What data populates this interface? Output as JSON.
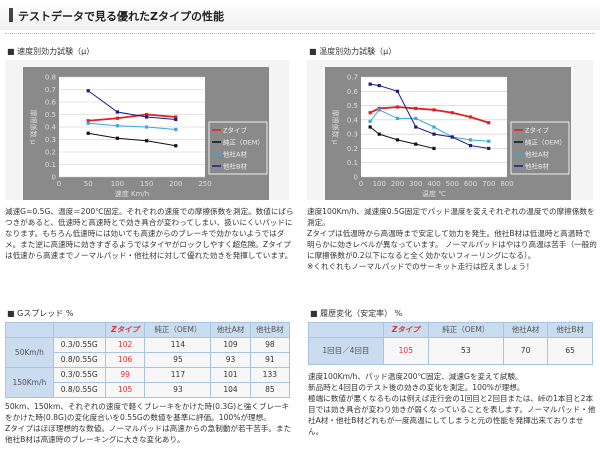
{
  "page_title": "テストデータで見る優れたZタイプの性能",
  "speed_section": {
    "title": "■ 速度別効力試験（μ）",
    "text": "減速G=0.5G、温度＝200℃固定。それぞれの速度での摩擦係数を測定。数値にばらつきがあると、低速時と高速時とで効き具合が変わってしまい、扱いにくいパッドになります。もちろん低速時には効いても高速からのブレーキで効かないようではダメ。また逆に高速時に効きすぎるようではタイヤがロックしやすく超危険。Zタイプは低速から高速までノーマルパッド・他社材に対して優れた効きを発揮しています。"
  },
  "temp_section": {
    "title": "■ 温度別効力試験（μ）",
    "text": [
      "速度100Km/h、減速度0.5G固定でパッド温度を変えそれぞれの温度での摩擦係数を測定。",
      "Zタイプは低温時から高温時まで安定して効力を発生。他社B材は低温時と高温時で明らかに効きレベルが異なっています。 ノーマルパッドはやはり高温は苦手（一般的に摩擦係数が0.2以下になると全く効かないフィーリングになる）。",
      "※くれぐれもノーマルパッドでのサーキット走行は控えましょう！"
    ]
  },
  "chart_data": [
    {
      "type": "line",
      "ylabel": "摩擦係数 μ",
      "xlabel": "速度 Km/h",
      "xlim": [
        0,
        250
      ],
      "ylim": [
        0,
        0.8
      ],
      "xticks": [
        "0",
        "50",
        "100",
        "150",
        "200",
        "250"
      ],
      "yticks": [
        "0",
        "0.1",
        "0.2",
        "0.3",
        "0.4",
        "0.5",
        "0.6",
        "0.7",
        "0.8"
      ],
      "grid": true,
      "legend": "right",
      "x": [
        50,
        100,
        150,
        200
      ],
      "series": [
        {
          "name": "Zタイプ",
          "color": "#e02020",
          "values": [
            0.45,
            0.47,
            0.5,
            0.48
          ]
        },
        {
          "name": "純正（OEM）",
          "color": "#111111",
          "values": [
            0.35,
            0.31,
            0.29,
            0.25
          ]
        },
        {
          "name": "他社A材",
          "color": "#3aa8e0",
          "values": [
            0.43,
            0.41,
            0.4,
            0.38
          ]
        },
        {
          "name": "他社B材",
          "color": "#1a1a80",
          "values": [
            0.69,
            0.52,
            0.48,
            0.46
          ]
        }
      ]
    },
    {
      "type": "line",
      "ylabel": "摩擦係数 μ",
      "xlabel": "温度 ℃",
      "xlim": [
        0,
        800
      ],
      "ylim": [
        0,
        0.7
      ],
      "xticks": [
        "0",
        "100",
        "200",
        "300",
        "400",
        "500",
        "600",
        "700",
        "800"
      ],
      "yticks": [
        "0",
        "0.1",
        "0.2",
        "0.3",
        "0.4",
        "0.5",
        "0.6",
        "0.7"
      ],
      "grid": true,
      "legend": "right",
      "x": [
        50,
        100,
        200,
        300,
        400,
        500,
        600,
        700
      ],
      "series": [
        {
          "name": "Zタイプ",
          "color": "#e02020",
          "values": [
            0.45,
            0.48,
            0.49,
            0.48,
            0.47,
            0.45,
            0.42,
            0.38
          ]
        },
        {
          "name": "純正（OEM）",
          "color": "#111111",
          "values": [
            0.35,
            0.3,
            0.26,
            0.23,
            0.2,
            null,
            null,
            null
          ]
        },
        {
          "name": "他社A材",
          "color": "#3aa8e0",
          "values": [
            0.39,
            0.47,
            0.41,
            0.41,
            0.35,
            0.28,
            0.26,
            0.25
          ]
        },
        {
          "name": "他社B材",
          "color": "#1a1a80",
          "values": [
            0.65,
            0.64,
            0.6,
            0.35,
            0.3,
            0.28,
            0.22,
            0.2
          ]
        }
      ]
    }
  ],
  "gspread": {
    "title": "■ Gスプレッド %",
    "headers": [
      "",
      "",
      "Zタイプ",
      "純正（OEM）",
      "他社A材",
      "他社B材"
    ],
    "groups": [
      {
        "label": "50Km/h",
        "rows": [
          [
            "0.3/0.55G",
            "102",
            "114",
            "109",
            "98"
          ],
          [
            "0.8/0.55G",
            "106",
            "95",
            "93",
            "91"
          ]
        ]
      },
      {
        "label": "150Km/h",
        "rows": [
          [
            "0.3/0.55G",
            "99",
            "117",
            "101",
            "133"
          ],
          [
            "0.8/0.55G",
            "105",
            "93",
            "104",
            "85"
          ]
        ]
      }
    ],
    "text": [
      "50km、150km、それぞれの速度で軽くブレーキをかけた時(0.3G)と強くブレーキをかけた時(0.8G)の変化度合いを0.55Gの数値を基準に評価。100%が理想。",
      "Zタイプはほぼ理想的な数値。ノーマルパッドは高速からの急制動が若干苦手。また他社B材は高速時のブレーキングに大きな変化あり。"
    ]
  },
  "history": {
    "title": "■ 履歴変化（安定率） %",
    "headers": [
      "",
      "Zタイプ",
      "純正（OEM）",
      "他社A材",
      "他社B材"
    ],
    "row": [
      "1回目／4回目",
      "105",
      "53",
      "70",
      "65"
    ],
    "text": [
      "速度100Km/h、パッド温度200℃固定、減速Gを変えて試験。",
      "新品時と4回目のテスト後の効きの変化を測定。100%が理想。",
      "極端に数値が悪くなるものは例えば走行会の1回目と2回目または、峠の1本目と2本目では効き具合が変わり効きが弱くなっていることを表します。ノーマルパッド・他社A材・他社B材どれもが一度高温にしてしまうと元の性能を発揮出来ておりません。"
    ]
  }
}
